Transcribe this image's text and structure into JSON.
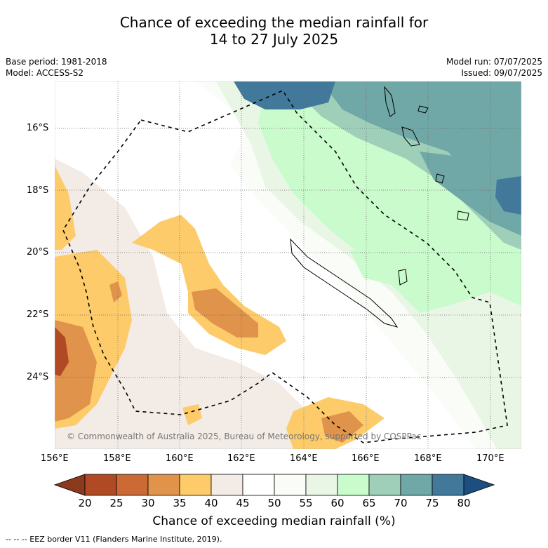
{
  "title": {
    "line1": "Chance of exceeding the median rainfall for",
    "line2": "14 to 27 July 2025"
  },
  "meta": {
    "base_period": "Base period: 1981-2018",
    "model": "Model: ACCESS-S2",
    "model_run": "Model run: 07/07/2025",
    "issued": "Issued: 09/07/2025"
  },
  "map": {
    "copyright": "© Commonwealth of Australia 2025, Bureau of Meteorology, supported by COSPPac",
    "lat_labels": [
      "16°S",
      "18°S",
      "20°S",
      "22°S",
      "24°S"
    ],
    "lon_labels": [
      "156°E",
      "158°E",
      "160°E",
      "162°E",
      "164°E",
      "166°E",
      "168°E",
      "170°E"
    ],
    "grid": true
  },
  "legend": {
    "label": "Chance of exceeding median rainfall (%)",
    "ticks": [
      "20",
      "25",
      "30",
      "35",
      "40",
      "45",
      "50",
      "55",
      "60",
      "65",
      "70",
      "75",
      "80"
    ],
    "colors": [
      "#8c3a1d",
      "#b04a24",
      "#cc6a35",
      "#e0934a",
      "#fdcb6a",
      "#f2ebe6",
      "#ffffff",
      "#fafcf7",
      "#e9f6e5",
      "#c9fbcc",
      "#9fcfb9",
      "#6fa8a6",
      "#42799a",
      "#1c4f80"
    ],
    "footer": "--  --  -- EEZ border V11 (Flanders Marine Institute, 2019)."
  },
  "colors": {
    "dry_strong": "#b04a24",
    "dry": "#e0934a",
    "dry_light": "#fdcb6a",
    "neutral_low": "#f2ebe6",
    "neutral_high": "#e9f6e5",
    "wet_light": "#c9fbcc",
    "wet": "#9fcfb9",
    "wet_strong": "#6fa8a6",
    "wettest": "#42799a"
  }
}
